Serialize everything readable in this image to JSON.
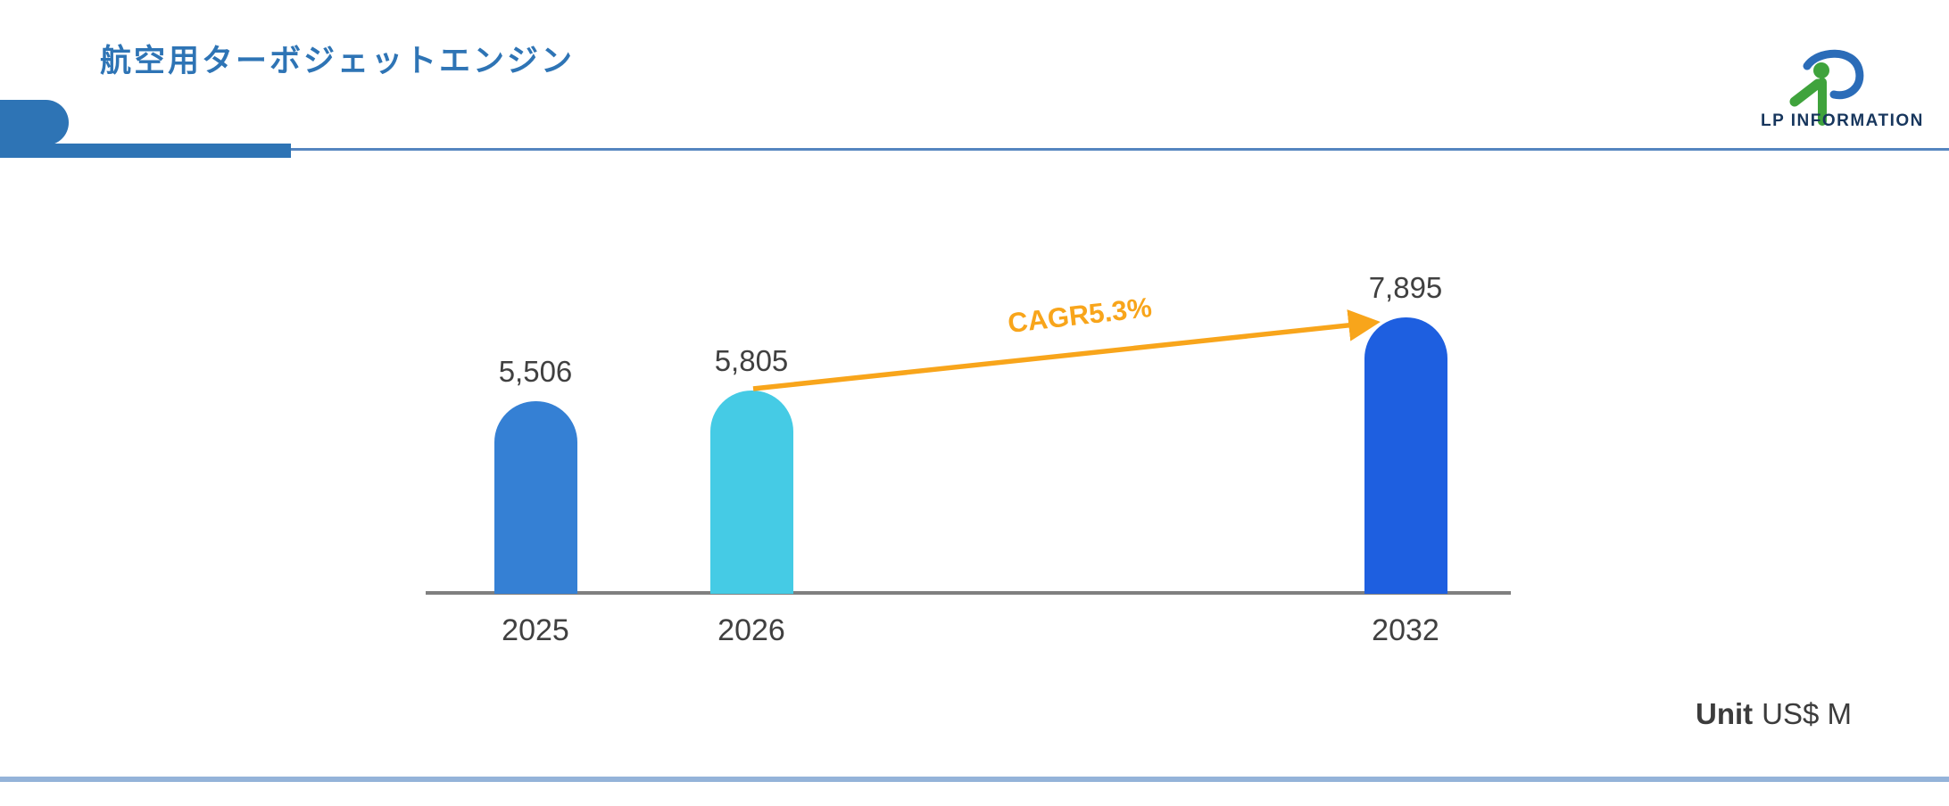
{
  "header": {
    "title": "航空用ターボジェットエンジン"
  },
  "logo": {
    "text": "LP INFORMATION"
  },
  "chart_data": {
    "type": "bar",
    "title": "航空用ターボジェットエンジン",
    "categories": [
      "2025",
      "2026",
      "2032"
    ],
    "values": [
      5506,
      5805,
      7895
    ],
    "value_labels": [
      "5,506",
      "5,805",
      "7,895"
    ],
    "bar_colors": [
      "#3580D4",
      "#45CBE5",
      "#1E5FE0"
    ],
    "unit": "US$ M",
    "xlabel": "",
    "ylabel": "",
    "ylim": [
      0,
      8600
    ],
    "grid": false,
    "legend": false,
    "annotation": {
      "label": "CAGR5.3%",
      "type": "growth-arrow",
      "from_category": "2026",
      "to_category": "2032",
      "color": "#F8A51B"
    }
  },
  "footer": {
    "unit_label": "Unit",
    "unit_value": "US$ M"
  },
  "colors": {
    "accent_blue": "#2E74B5",
    "header_line": "#5585C0",
    "axis_gray": "#808080",
    "text_gray": "#404040",
    "arrow_orange": "#F8A51B",
    "bottom_line": "#94B3D9"
  }
}
